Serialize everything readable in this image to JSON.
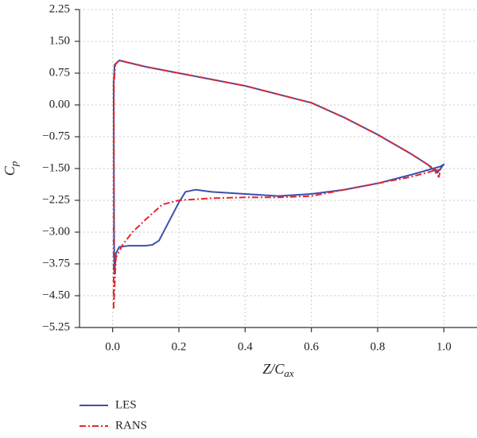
{
  "chart_data": {
    "type": "line",
    "x_label": [
      "Z/C",
      "ax"
    ],
    "y_label": [
      "C",
      "p"
    ],
    "xlim": [
      -0.1,
      1.1
    ],
    "ylim": [
      -5.25,
      2.25
    ],
    "xticks": [
      {
        "value": 0,
        "label": "0.0"
      },
      0.2,
      0.4,
      0.6,
      0.8,
      {
        "value": 1,
        "label": "1.0"
      }
    ],
    "yticks": [
      {
        "value": 2.25,
        "label": "2.25"
      },
      {
        "value": 1.5,
        "label": "1.50"
      },
      {
        "value": 0.75,
        "label": "0.75"
      },
      {
        "value": 0,
        "label": "0.00"
      },
      {
        "value": -0.75,
        "label": "−0.75"
      },
      {
        "value": -1.5,
        "label": "−1.50"
      },
      {
        "value": -2.25,
        "label": "−2.25"
      },
      {
        "value": -3,
        "label": "−3.00"
      },
      {
        "value": -3.75,
        "label": "−3.75"
      },
      {
        "value": -4.5,
        "label": "−4.50"
      },
      {
        "value": -5.25,
        "label": "−5.25"
      }
    ],
    "grid": true,
    "legend": "bottom-left",
    "series": [
      {
        "name": "LES",
        "color": "#3b4fb0",
        "dash": "none",
        "x": [
          0.005,
          0.003,
          0.006,
          0.02,
          0.1,
          0.2,
          0.3,
          0.4,
          0.5,
          0.6,
          0.7,
          0.8,
          0.9,
          0.95,
          0.98,
          0.99,
          1.0,
          0.99,
          0.9,
          0.8,
          0.7,
          0.6,
          0.5,
          0.4,
          0.3,
          0.25,
          0.22,
          0.2,
          0.17,
          0.14,
          0.12,
          0.1,
          0.05,
          0.02,
          0.01,
          0.005
        ],
        "values": [
          -4.0,
          0.5,
          0.95,
          1.05,
          0.9,
          0.75,
          0.6,
          0.45,
          0.25,
          0.05,
          -0.3,
          -0.7,
          -1.15,
          -1.4,
          -1.6,
          -1.5,
          -1.4,
          -1.45,
          -1.65,
          -1.85,
          -2.0,
          -2.1,
          -2.15,
          -2.1,
          -2.05,
          -2.0,
          -2.05,
          -2.3,
          -2.75,
          -3.2,
          -3.3,
          -3.32,
          -3.32,
          -3.35,
          -3.5,
          -4.0
        ]
      },
      {
        "name": "RANS",
        "color": "#e8262b",
        "dash": "8 3 2 3",
        "x": [
          0.003,
          0.004,
          0.008,
          0.02,
          0.1,
          0.2,
          0.3,
          0.4,
          0.5,
          0.6,
          0.7,
          0.8,
          0.9,
          0.95,
          0.98,
          0.99,
          0.985,
          0.97,
          0.9,
          0.8,
          0.7,
          0.6,
          0.5,
          0.4,
          0.3,
          0.2,
          0.15,
          0.1,
          0.06,
          0.03,
          0.01,
          0.003
        ],
        "values": [
          -4.8,
          0.5,
          0.95,
          1.05,
          0.9,
          0.75,
          0.6,
          0.45,
          0.25,
          0.05,
          -0.3,
          -0.7,
          -1.15,
          -1.4,
          -1.55,
          -1.5,
          -1.7,
          -1.55,
          -1.7,
          -1.85,
          -2.0,
          -2.15,
          -2.18,
          -2.18,
          -2.2,
          -2.25,
          -2.35,
          -2.7,
          -3.0,
          -3.3,
          -3.6,
          -4.8
        ]
      }
    ]
  }
}
